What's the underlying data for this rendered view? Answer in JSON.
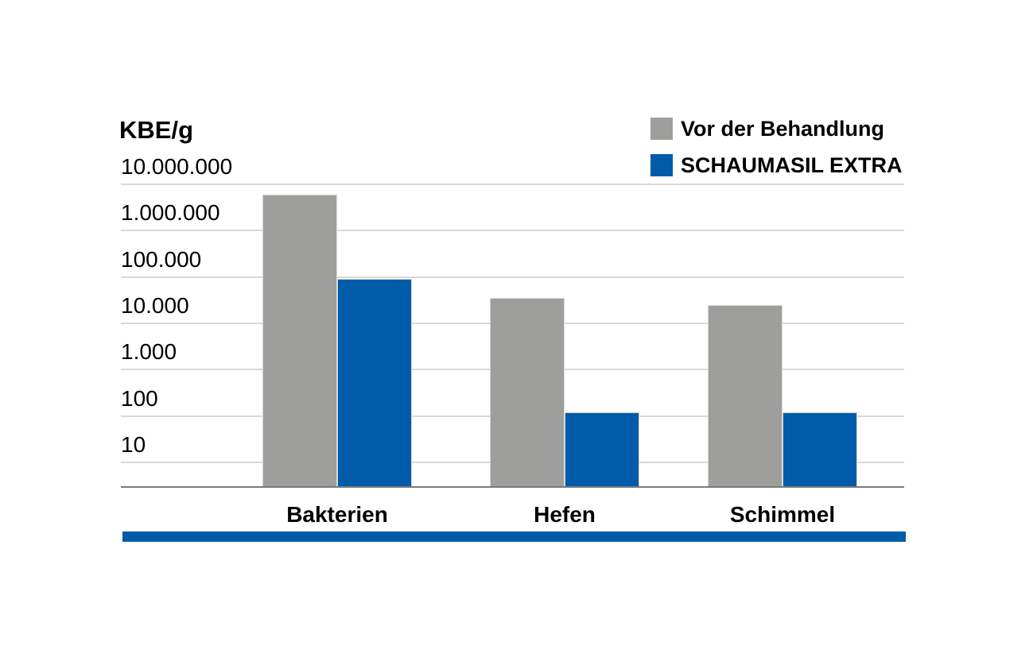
{
  "chart_data": {
    "type": "bar",
    "y_scale": "log",
    "ylabel": "KBE/g",
    "categories": [
      "Bakterien",
      "Hefen",
      "Schimmel"
    ],
    "series": [
      {
        "name": "Vor der Behandlung",
        "color": "#9e9e9d",
        "values": [
          6000000,
          35000,
          25000
        ]
      },
      {
        "name": "SCHAUMASIL EXTRA",
        "color": "#005ca8",
        "values": [
          90000,
          120,
          120
        ]
      }
    ],
    "y_ticks": [
      {
        "label": "10.000.000",
        "value": 10000000
      },
      {
        "label": "1.000.000",
        "value": 1000000
      },
      {
        "label": "100.000",
        "value": 100000
      },
      {
        "label": "10.000",
        "value": 10000
      },
      {
        "label": "1.000",
        "value": 1000
      },
      {
        "label": "100",
        "value": 100
      },
      {
        "label": "10",
        "value": 10
      }
    ],
    "grid": true,
    "legend_position": "top-right"
  },
  "colors": {
    "background": "#ffffff",
    "bar_gray": "#9e9e9d",
    "bar_blue": "#005ca8",
    "gridline": "#d9d9d9",
    "axis_line": "#7a7a7a",
    "footer_bar": "#005ca8",
    "text": "#000000"
  }
}
